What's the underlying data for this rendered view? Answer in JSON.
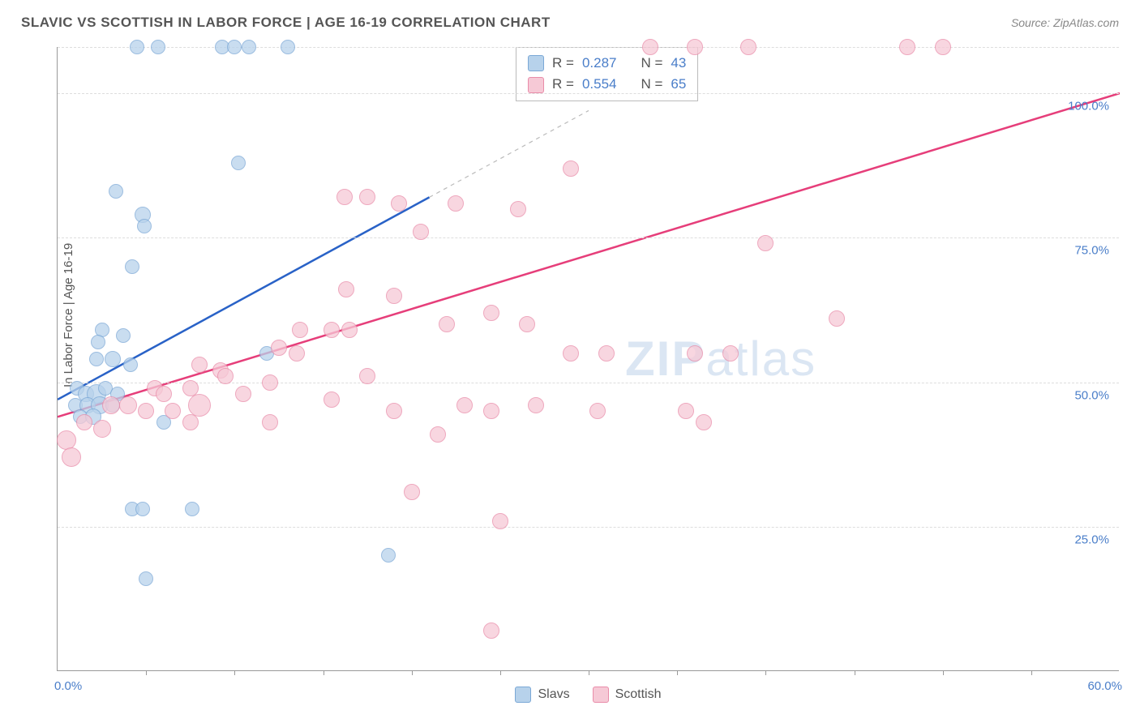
{
  "title": "SLAVIC VS SCOTTISH IN LABOR FORCE | AGE 16-19 CORRELATION CHART",
  "source": "Source: ZipAtlas.com",
  "y_axis_label": "In Labor Force | Age 16-19",
  "watermark_zip": "ZIP",
  "watermark_atlas": "atlas",
  "chart": {
    "type": "scatter",
    "xmin": 0,
    "xmax": 60,
    "ymin": 0,
    "ymax": 108,
    "x_start_label": "0.0%",
    "x_end_label": "60.0%",
    "x_ticks": [
      5,
      10,
      15,
      20,
      25,
      30,
      35,
      40,
      45,
      50,
      55
    ],
    "y_gridlines": [
      25,
      50,
      75,
      100,
      108
    ],
    "y_labels": [
      {
        "v": 25,
        "t": "25.0%"
      },
      {
        "v": 50,
        "t": "50.0%"
      },
      {
        "v": 75,
        "t": "75.0%"
      },
      {
        "v": 100,
        "t": "100.0%"
      }
    ],
    "background_color": "#ffffff",
    "grid_color": "#dddddd",
    "axis_color": "#999999",
    "label_color": "#4a7ec9",
    "series": [
      {
        "name": "Slavs",
        "color_fill": "#b7d2eb",
        "color_stroke": "#7ba8d6",
        "R": "0.287",
        "N": "43",
        "trend": {
          "x1": 0,
          "y1": 47,
          "x2": 21,
          "y2": 82,
          "dash_x2": 30,
          "dash_y2": 97,
          "color": "#2962c7",
          "width": 2.5
        },
        "points": [
          {
            "x": 4.5,
            "y": 108,
            "r": 9
          },
          {
            "x": 5.7,
            "y": 108,
            "r": 9
          },
          {
            "x": 9.3,
            "y": 108,
            "r": 9
          },
          {
            "x": 10,
            "y": 108,
            "r": 9
          },
          {
            "x": 10.8,
            "y": 108,
            "r": 9
          },
          {
            "x": 13,
            "y": 108,
            "r": 9
          },
          {
            "x": 10.2,
            "y": 88,
            "r": 9
          },
          {
            "x": 3.3,
            "y": 83,
            "r": 9
          },
          {
            "x": 4.8,
            "y": 79,
            "r": 10
          },
          {
            "x": 4.9,
            "y": 77,
            "r": 9
          },
          {
            "x": 4.2,
            "y": 70,
            "r": 9
          },
          {
            "x": 2.5,
            "y": 59,
            "r": 9
          },
          {
            "x": 2.3,
            "y": 57,
            "r": 9
          },
          {
            "x": 3.7,
            "y": 58,
            "r": 9
          },
          {
            "x": 2.2,
            "y": 54,
            "r": 9
          },
          {
            "x": 3.1,
            "y": 54,
            "r": 10
          },
          {
            "x": 4.1,
            "y": 53,
            "r": 9
          },
          {
            "x": 11.8,
            "y": 55,
            "r": 9
          },
          {
            "x": 1.1,
            "y": 49,
            "r": 9
          },
          {
            "x": 1.6,
            "y": 48,
            "r": 10
          },
          {
            "x": 2.2,
            "y": 48,
            "r": 12
          },
          {
            "x": 2.7,
            "y": 49,
            "r": 9
          },
          {
            "x": 3.4,
            "y": 48,
            "r": 9
          },
          {
            "x": 1.0,
            "y": 46,
            "r": 9
          },
          {
            "x": 1.7,
            "y": 46,
            "r": 10
          },
          {
            "x": 2.4,
            "y": 46,
            "r": 11
          },
          {
            "x": 3.1,
            "y": 46,
            "r": 9
          },
          {
            "x": 1.3,
            "y": 44,
            "r": 9
          },
          {
            "x": 2.0,
            "y": 44,
            "r": 10
          },
          {
            "x": 6.0,
            "y": 43,
            "r": 9
          },
          {
            "x": 4.2,
            "y": 28,
            "r": 9
          },
          {
            "x": 4.8,
            "y": 28,
            "r": 9
          },
          {
            "x": 7.6,
            "y": 28,
            "r": 9
          },
          {
            "x": 18.7,
            "y": 20,
            "r": 9
          },
          {
            "x": 5.0,
            "y": 16,
            "r": 9
          }
        ]
      },
      {
        "name": "Scottish",
        "color_fill": "#f6c9d6",
        "color_stroke": "#e98ca9",
        "R": "0.554",
        "N": "65",
        "trend": {
          "x1": 0,
          "y1": 44,
          "x2": 60,
          "y2": 100,
          "color": "#e63e7a",
          "width": 2.5
        },
        "points": [
          {
            "x": 33.5,
            "y": 108,
            "r": 10
          },
          {
            "x": 36,
            "y": 108,
            "r": 10
          },
          {
            "x": 39,
            "y": 108,
            "r": 10
          },
          {
            "x": 48,
            "y": 108,
            "r": 10
          },
          {
            "x": 50,
            "y": 108,
            "r": 10
          },
          {
            "x": 29,
            "y": 87,
            "r": 10
          },
          {
            "x": 16.2,
            "y": 82,
            "r": 10
          },
          {
            "x": 17.5,
            "y": 82,
            "r": 10
          },
          {
            "x": 19.3,
            "y": 81,
            "r": 10
          },
          {
            "x": 22.5,
            "y": 81,
            "r": 10
          },
          {
            "x": 26,
            "y": 80,
            "r": 10
          },
          {
            "x": 20.5,
            "y": 76,
            "r": 10
          },
          {
            "x": 40,
            "y": 74,
            "r": 10
          },
          {
            "x": 16.3,
            "y": 66,
            "r": 10
          },
          {
            "x": 19,
            "y": 65,
            "r": 10
          },
          {
            "x": 13.7,
            "y": 59,
            "r": 10
          },
          {
            "x": 15.5,
            "y": 59,
            "r": 10
          },
          {
            "x": 16.5,
            "y": 59,
            "r": 10
          },
          {
            "x": 22,
            "y": 60,
            "r": 10
          },
          {
            "x": 24.5,
            "y": 62,
            "r": 10
          },
          {
            "x": 26.5,
            "y": 60,
            "r": 10
          },
          {
            "x": 12.5,
            "y": 56,
            "r": 10
          },
          {
            "x": 44,
            "y": 61,
            "r": 10
          },
          {
            "x": 8,
            "y": 53,
            "r": 10
          },
          {
            "x": 9.2,
            "y": 52,
            "r": 10
          },
          {
            "x": 13.5,
            "y": 55,
            "r": 10
          },
          {
            "x": 29,
            "y": 55,
            "r": 10
          },
          {
            "x": 31,
            "y": 55,
            "r": 10
          },
          {
            "x": 36,
            "y": 55,
            "r": 10
          },
          {
            "x": 38,
            "y": 55,
            "r": 10
          },
          {
            "x": 5.5,
            "y": 49,
            "r": 10
          },
          {
            "x": 6.0,
            "y": 48,
            "r": 10
          },
          {
            "x": 7.5,
            "y": 49,
            "r": 10
          },
          {
            "x": 9.5,
            "y": 51,
            "r": 10
          },
          {
            "x": 10.5,
            "y": 48,
            "r": 10
          },
          {
            "x": 12,
            "y": 50,
            "r": 10
          },
          {
            "x": 15.5,
            "y": 47,
            "r": 10
          },
          {
            "x": 17.5,
            "y": 51,
            "r": 10
          },
          {
            "x": 3.0,
            "y": 46,
            "r": 11
          },
          {
            "x": 4.0,
            "y": 46,
            "r": 11
          },
          {
            "x": 5.0,
            "y": 45,
            "r": 10
          },
          {
            "x": 6.5,
            "y": 45,
            "r": 10
          },
          {
            "x": 8.0,
            "y": 46,
            "r": 14
          },
          {
            "x": 1.5,
            "y": 43,
            "r": 10
          },
          {
            "x": 2.5,
            "y": 42,
            "r": 11
          },
          {
            "x": 7.5,
            "y": 43,
            "r": 10
          },
          {
            "x": 12,
            "y": 43,
            "r": 10
          },
          {
            "x": 19,
            "y": 45,
            "r": 10
          },
          {
            "x": 23,
            "y": 46,
            "r": 10
          },
          {
            "x": 24.5,
            "y": 45,
            "r": 10
          },
          {
            "x": 27,
            "y": 46,
            "r": 10
          },
          {
            "x": 30.5,
            "y": 45,
            "r": 10
          },
          {
            "x": 35.5,
            "y": 45,
            "r": 10
          },
          {
            "x": 36.5,
            "y": 43,
            "r": 10
          },
          {
            "x": 0.5,
            "y": 40,
            "r": 12
          },
          {
            "x": 0.8,
            "y": 37,
            "r": 12
          },
          {
            "x": 21.5,
            "y": 41,
            "r": 10
          },
          {
            "x": 20,
            "y": 31,
            "r": 10
          },
          {
            "x": 25,
            "y": 26,
            "r": 10
          },
          {
            "x": 24.5,
            "y": 7,
            "r": 10
          }
        ]
      }
    ],
    "bottom_legend": [
      {
        "label": "Slavs",
        "fill": "#b7d2eb",
        "stroke": "#7ba8d6"
      },
      {
        "label": "Scottish",
        "fill": "#f6c9d6",
        "stroke": "#e98ca9"
      }
    ]
  }
}
